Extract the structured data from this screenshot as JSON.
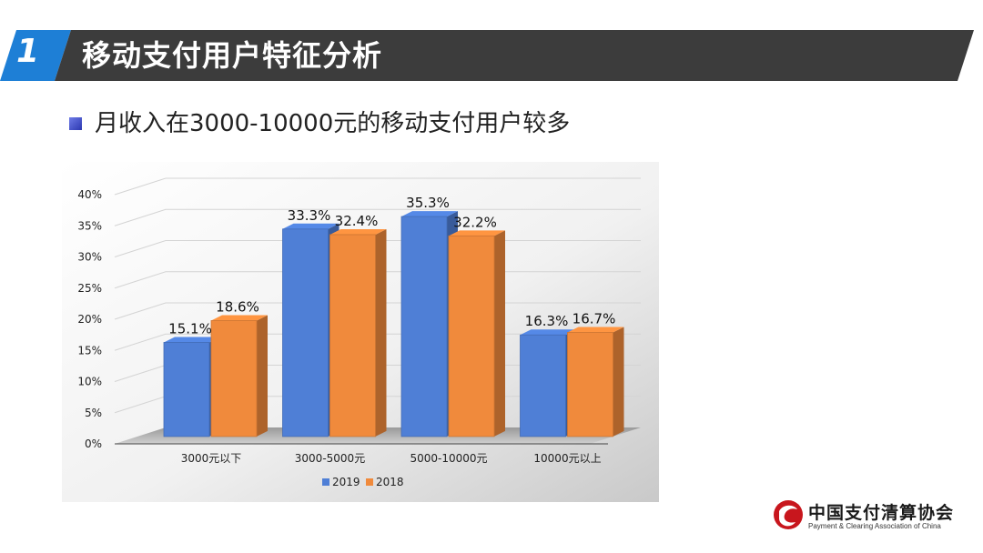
{
  "header": {
    "number": "1",
    "title": "移动支付用户特征分析",
    "colors": {
      "number_bg": "#1e7fd6",
      "title_bg": "#3c3c3c"
    }
  },
  "subtitle": {
    "text": "月收入在3000-10000元的移动支付用户较多",
    "bullet_color": "#3a49c9"
  },
  "logo": {
    "name_cn": "中国支付清算协会",
    "name_en": "Payment & Clearing Association of China",
    "icon": "pcac-logo-icon"
  },
  "chart_data": {
    "type": "bar",
    "categories": [
      "3000元以下",
      "3000-5000元",
      "5000-10000元",
      "10000元以上"
    ],
    "series": [
      {
        "name": "2019",
        "values": [
          15.1,
          33.3,
          35.3,
          16.3
        ],
        "labels": [
          "15.1%",
          "33.3%",
          "35.3%",
          "16.3%"
        ],
        "color": "#4f7fd6"
      },
      {
        "name": "2018",
        "values": [
          18.6,
          32.4,
          32.2,
          16.7
        ],
        "labels": [
          "18.6%",
          "32.4%",
          "32.2%",
          "16.7%"
        ],
        "color": "#f08a3c"
      }
    ],
    "y_ticks": [
      "0%",
      "5%",
      "10%",
      "15%",
      "20%",
      "25%",
      "30%",
      "35%",
      "40%"
    ],
    "ylim": [
      0,
      40
    ],
    "grid": true,
    "legend": "bottom",
    "style": "3d"
  }
}
